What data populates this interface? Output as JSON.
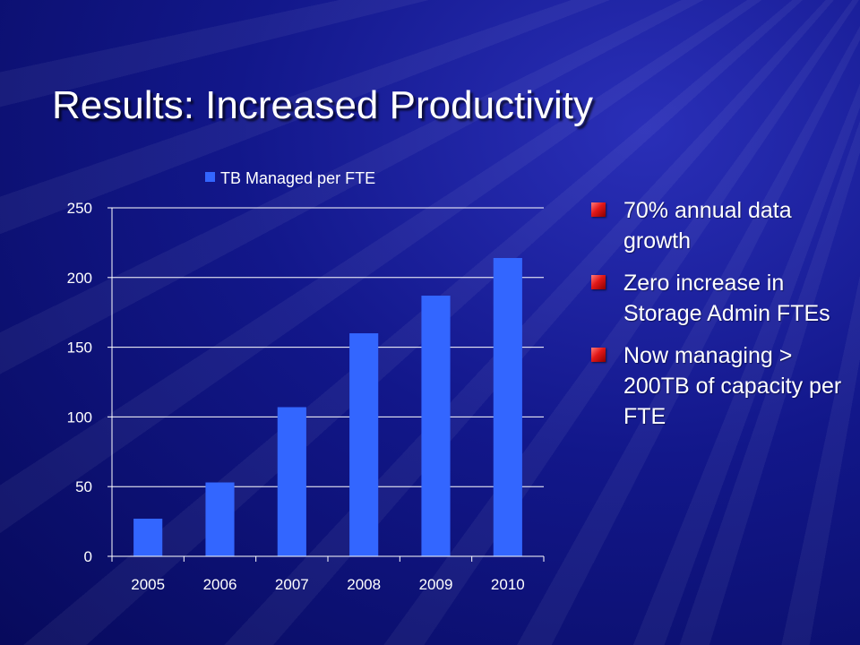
{
  "slide": {
    "title": "Results: Increased Productivity",
    "bullets": [
      "70% annual data growth",
      "Zero increase in Storage Admin FTEs",
      "Now managing > 200TB of capacity per FTE"
    ],
    "colors": {
      "background": "#12178a",
      "bar": "#3366ff",
      "bullet_marker": "#e21818",
      "text": "#ffffff"
    }
  },
  "chart_data": {
    "type": "bar",
    "categories": [
      "2005",
      "2006",
      "2007",
      "2008",
      "2009",
      "2010"
    ],
    "series": [
      {
        "name": "TB Managed per FTE",
        "values": [
          27,
          53,
          107,
          160,
          187,
          214
        ]
      }
    ],
    "ylim": [
      0,
      250
    ],
    "yticks": [
      0,
      50,
      100,
      150,
      200,
      250
    ],
    "grid": true,
    "legend": "top-center"
  }
}
